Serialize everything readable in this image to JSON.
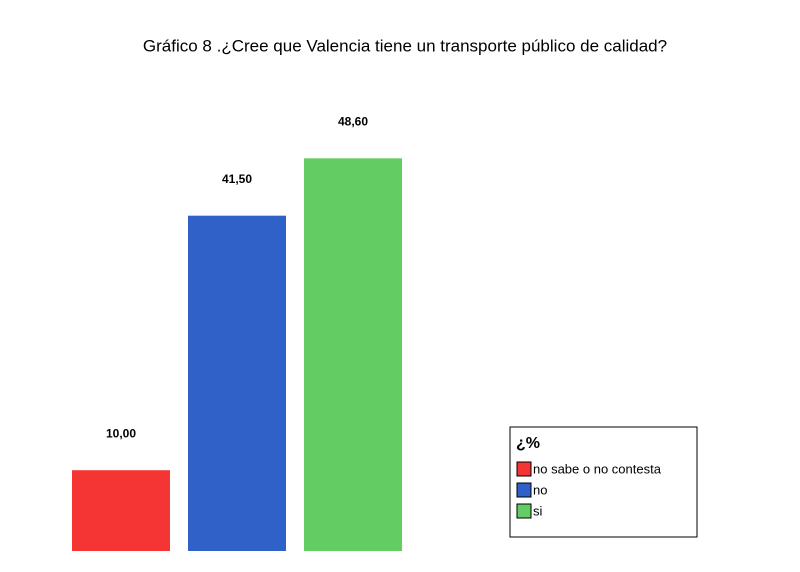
{
  "chart_data": {
    "type": "bar",
    "title": "Gráfico 8 .¿Cree que Valencia tiene un transporte público de calidad?",
    "categories": [
      "no sabe o no contesta",
      "no",
      "si"
    ],
    "values": [
      10.0,
      41.5,
      48.6
    ],
    "value_labels": [
      "10,00",
      "41,50",
      "48,60"
    ],
    "colors": [
      "#f53434",
      "#3061c8",
      "#63cd63"
    ],
    "legend_title": "¿%",
    "ylim": [
      0,
      50
    ]
  }
}
